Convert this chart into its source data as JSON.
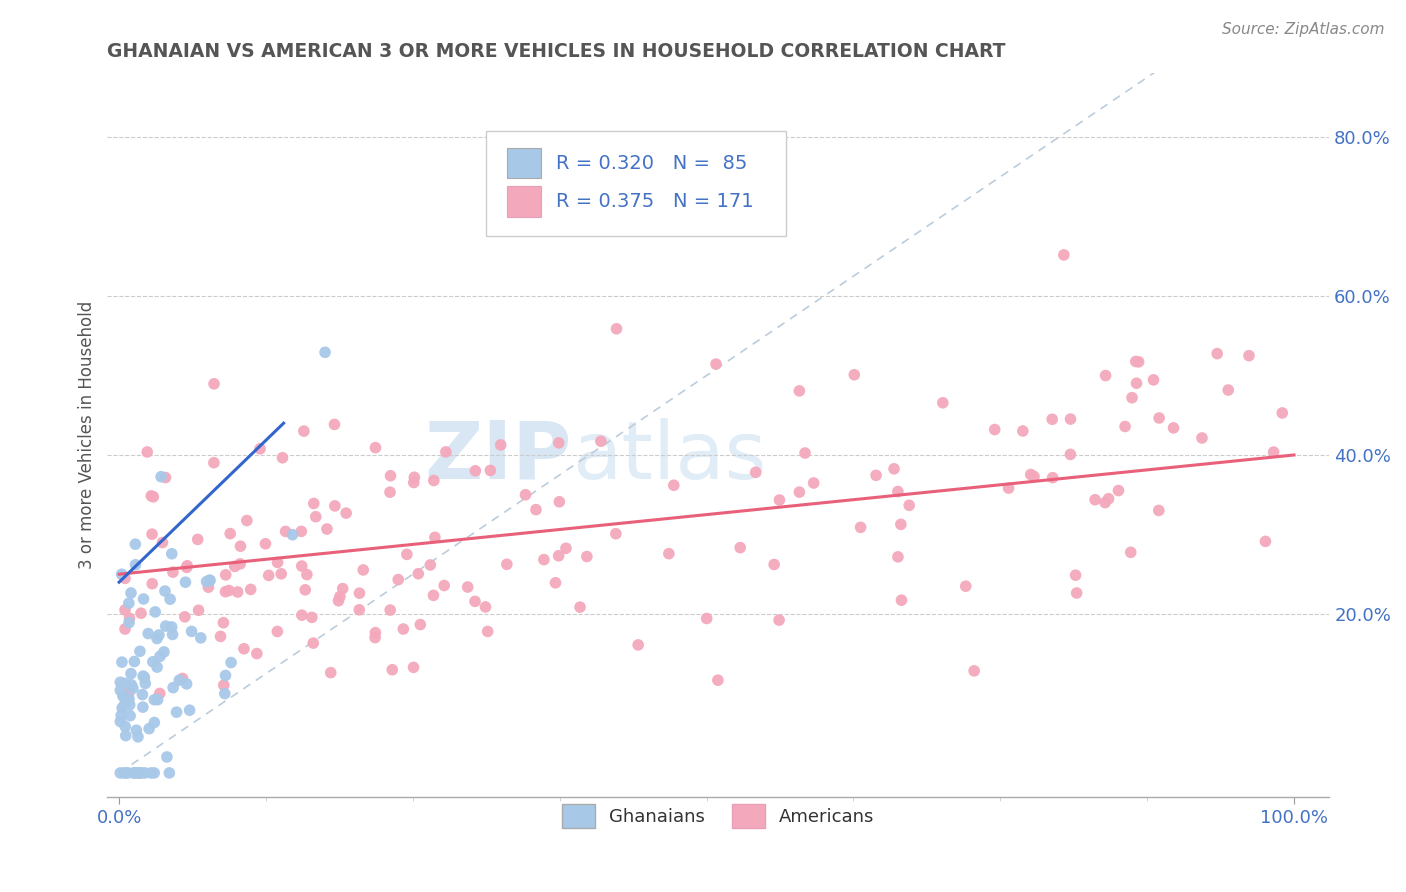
{
  "title": "GHANAIAN VS AMERICAN 3 OR MORE VEHICLES IN HOUSEHOLD CORRELATION CHART",
  "source": "Source: ZipAtlas.com",
  "ylabel": "3 or more Vehicles in Household",
  "ghanaian_color": "#a8c8e8",
  "american_color": "#f4a8bc",
  "ghanaian_line_color": "#3366cc",
  "american_line_color": "#e8607a",
  "diagonal_color": "#bbccdd",
  "watermark_zip": "ZIP",
  "watermark_atlas": "atlas",
  "legend_items": [
    {
      "label": "R = 0.320   N =  85",
      "color": "#a8c8e8"
    },
    {
      "label": "R = 0.375   N = 171",
      "color": "#f4a8bc"
    }
  ],
  "bottom_legend": [
    "Ghanaians",
    "Americans"
  ],
  "xlim": [
    0,
    100
  ],
  "ylim": [
    0,
    85
  ],
  "ytick_positions": [
    20,
    40,
    60,
    80
  ],
  "ytick_labels": [
    "20.0%",
    "40.0%",
    "60.0%",
    "80.0%"
  ],
  "xtick_labels": [
    "0.0%",
    "100.0%"
  ],
  "ghanaian_seed": 999,
  "american_seed": 777
}
